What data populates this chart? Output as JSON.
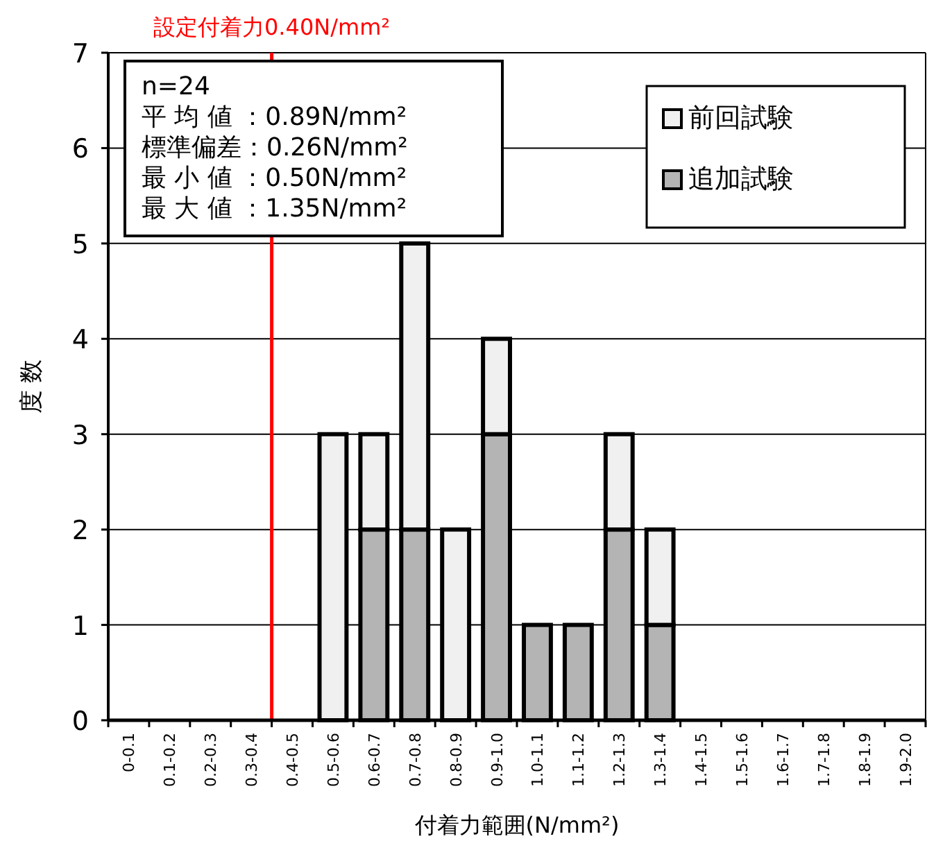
{
  "chart_data": {
    "type": "bar",
    "categories": [
      "0-0.1",
      "0.1-0.2",
      "0.2-0.3",
      "0.3-0.4",
      "0.4-0.5",
      "0.5-0.6",
      "0.6-0.7",
      "0.7-0.8",
      "0.8-0.9",
      "0.9-1.0",
      "1.0-1.1",
      "1.1-1.2",
      "1.2-1.3",
      "1.3-1.4",
      "1.4-1.5",
      "1.5-1.6",
      "1.6-1.7",
      "1.7-1.8",
      "1.8-1.9",
      "1.9-2.0"
    ],
    "xlabel": "付着力範囲(N/mm²)",
    "ylabel": "度 数",
    "stacked": true,
    "series": [
      {
        "name": "追加試験",
        "color": "#b4b4b4",
        "values": [
          0,
          0,
          0,
          0,
          0,
          0,
          2,
          2,
          0,
          3,
          1,
          1,
          2,
          1,
          0,
          0,
          0,
          0,
          0,
          0
        ]
      },
      {
        "name": "前回試験",
        "color": "#f0f0f0",
        "values": [
          0,
          0,
          0,
          0,
          0,
          3,
          1,
          3,
          2,
          1,
          0,
          0,
          1,
          1,
          0,
          0,
          0,
          0,
          0,
          0
        ]
      }
    ],
    "ylim": [
      0,
      7
    ],
    "yticks": [
      0,
      1,
      2,
      3,
      4,
      5,
      6,
      7
    ],
    "grid": "y",
    "legend": "top right",
    "ref_lines": [
      {
        "axis": "x",
        "value": "0.4-0.5",
        "label": "設定付着力0.40N/mm²",
        "color": "#ff0000"
      }
    ],
    "annotations": [
      "n=24",
      "平 均 値 ：0.89N/mm²",
      "標準偏差：0.26N/mm²",
      "最 小 値 ：0.50N/mm²",
      "最 大 値 ：1.35N/mm²"
    ]
  }
}
